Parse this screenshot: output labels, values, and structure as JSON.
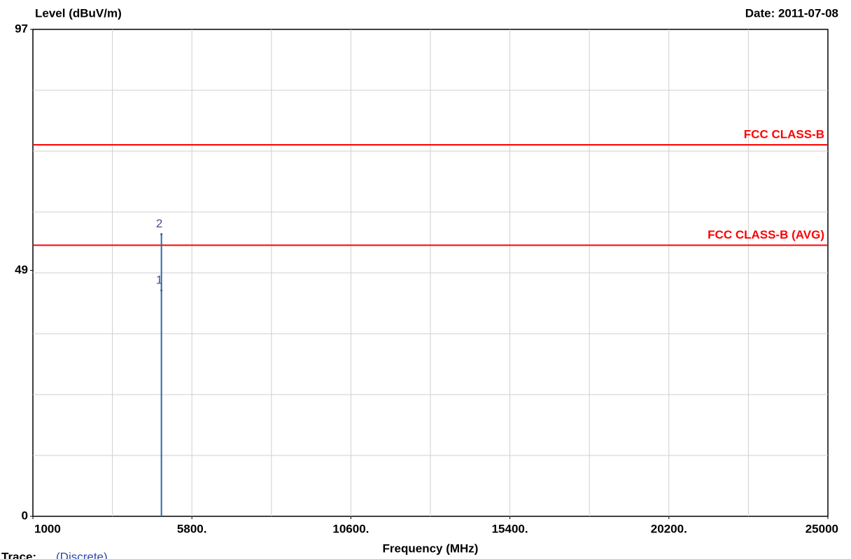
{
  "chart_data": {
    "type": "line",
    "y_label": "Level (dBuV/m)",
    "date": "Date: 2011-07-08",
    "x_label": "Frequency (MHz)",
    "trace_label": "Trace:",
    "trace_mode": "(Discrete)",
    "xlim": [
      1000,
      25000
    ],
    "xticks": [
      1000,
      {
        "value": 5800,
        "label": "5800."
      },
      {
        "value": 10600,
        "label": "10600."
      },
      {
        "value": 15400,
        "label": "15400."
      },
      {
        "value": 20200,
        "label": "20200."
      },
      25000
    ],
    "ylim": [
      0,
      97
    ],
    "yticks": [
      0,
      49,
      97
    ],
    "grid": true,
    "limits": [
      {
        "name": "FCC CLASS-B",
        "value": 74,
        "color": "#ff0000"
      },
      {
        "name": "FCC CLASS-B (AVG)",
        "value": 54,
        "color": "#ff0000"
      }
    ],
    "trace": {
      "x": [
        4880,
        4880
      ],
      "values": [
        0,
        56.2
      ],
      "color": "#2a6aa8"
    },
    "markers": {
      "labels": [
        "1",
        "2"
      ],
      "x": [
        4880,
        4880
      ],
      "values": [
        45,
        56.2
      ],
      "color": "#4a4a9a"
    }
  }
}
